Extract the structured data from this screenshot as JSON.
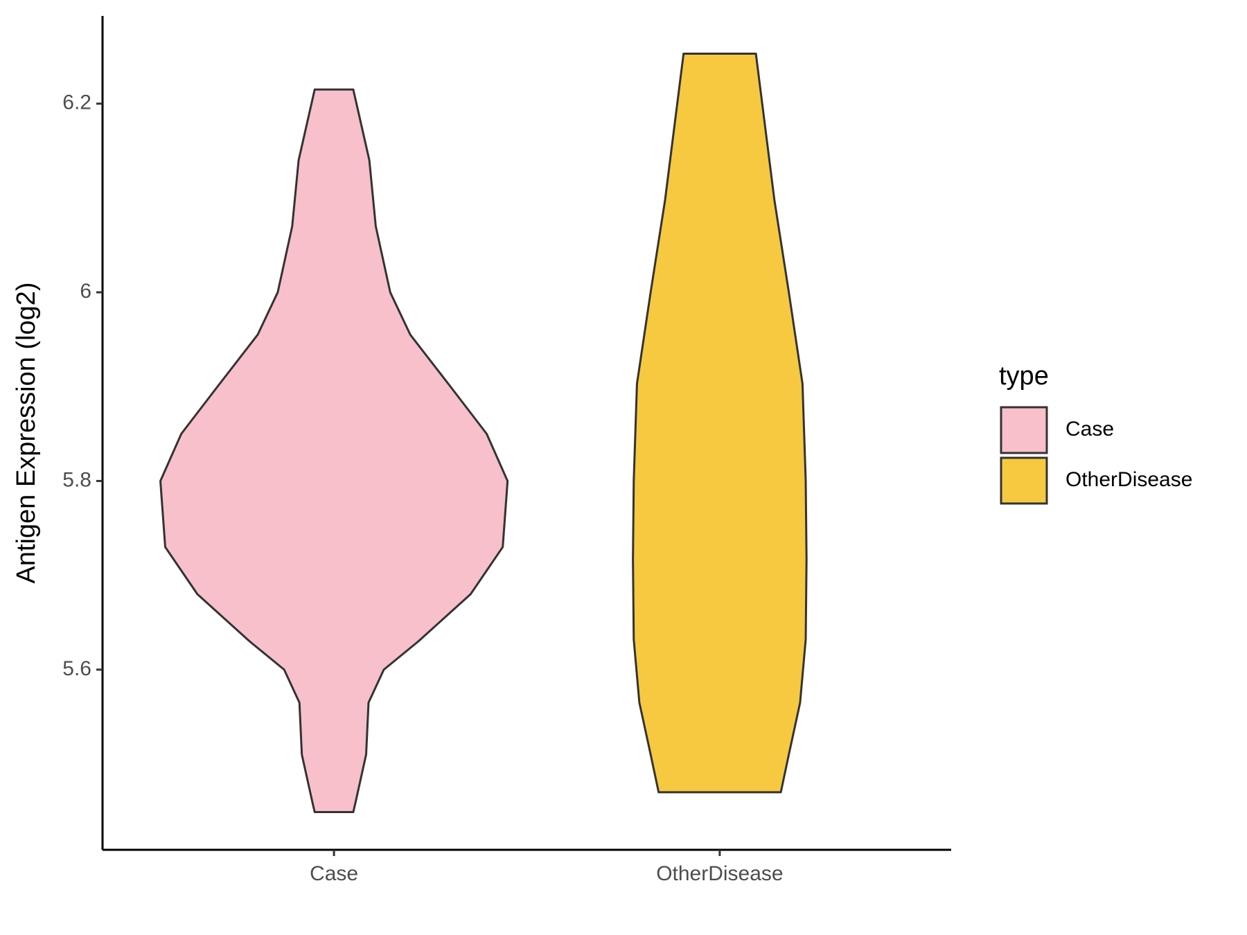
{
  "chart_data": {
    "type": "violin",
    "y_label": "Antigen Expression (log2)",
    "categories": [
      "Case",
      "OtherDisease"
    ],
    "legend_title": "type",
    "legend_position": "right",
    "series": [
      {
        "name": "Case",
        "color": "#f8c0cb",
        "y": [
          6.215,
          6.14,
          6.07,
          6.0,
          5.955,
          5.9,
          5.85,
          5.8,
          5.73,
          5.68,
          5.63,
          5.6,
          5.565,
          5.51,
          5.46,
          5.449
        ],
        "density": [
          24,
          44,
          52,
          70,
          95,
          145,
          190,
          216,
          210,
          170,
          105,
          62,
          43,
          40,
          27,
          24
        ]
      },
      {
        "name": "OtherDisease",
        "color": "#f6c940",
        "y": [
          6.253,
          6.098,
          6.0,
          5.903,
          5.8,
          5.717,
          5.632,
          5.565,
          5.514,
          5.47
        ],
        "density": [
          45,
          68,
          86,
          103,
          107,
          108,
          107,
          100,
          87,
          76
        ]
      }
    ],
    "ylim": [
      5.409,
      6.293
    ],
    "yticks": [
      5.6,
      5.8,
      6.0,
      6.2
    ],
    "grid": false
  }
}
